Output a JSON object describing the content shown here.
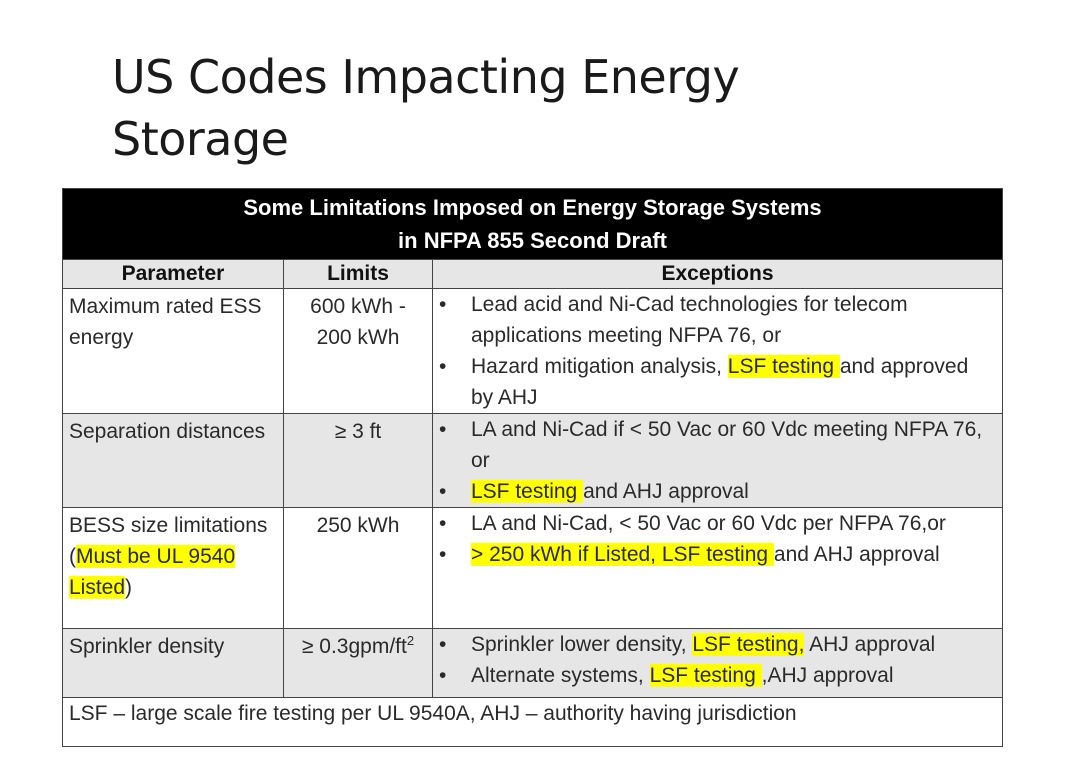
{
  "title": {
    "line1": "US Codes Impacting Energy",
    "line2": "Storage"
  },
  "table": {
    "caption_line1": "Some Limitations Imposed on Energy Storage Systems",
    "caption_line2": "in NFPA 855 Second Draft",
    "headers": {
      "parameter": "Parameter",
      "limits": "Limits",
      "exceptions": "Exceptions"
    },
    "bullet": "•",
    "rows": [
      {
        "parameter": "Maximum rated ESS energy",
        "limits": "600 kWh - 200 kWh",
        "exceptions": [
          {
            "text": " Lead acid and Ni-Cad technologies for telecom applications meeting NFPA 76, or"
          },
          {
            "pre": "Hazard mitigation analysis, ",
            "hl": "LSF testing ",
            "post": "and approved by AHJ"
          }
        ]
      },
      {
        "parameter": "Separation distances",
        "limits": "≥ 3 ft",
        "exceptions": [
          {
            "text": "LA and Ni-Cad if < 50 Vac or 60 Vdc meeting NFPA 76, or"
          },
          {
            "hl": "LSF testing ",
            "post": "and AHJ approval"
          }
        ]
      },
      {
        "parameter_pre": "BESS size limitations (",
        "parameter_hl": "Must be UL 9540 Listed",
        "parameter_post": ")",
        "limits": "250 kWh",
        "exceptions": [
          {
            "text": "LA and Ni-Cad, < 50 Vac or 60 Vdc per NFPA 76,or"
          },
          {
            "hl": "> 250 kWh if Listed, LSF testing ",
            "post": "and AHJ approval"
          }
        ]
      },
      {
        "parameter": "Sprinkler density",
        "limits_main": "≥ 0.3gpm/ft",
        "limits_sup": "2",
        "exceptions": [
          {
            "pre": "Sprinkler lower density, ",
            "hl": "LSF testing,",
            "post": " AHJ approval"
          },
          {
            "pre": "Alternate systems, ",
            "hl": "LSF testing ",
            "post": ",AHJ approval"
          }
        ]
      }
    ],
    "footnote": "LSF – large scale fire testing per UL 9540A, AHJ – authority having jurisdiction"
  },
  "colors": {
    "highlight": "#ffff00",
    "caption_bg": "#000000",
    "shaded_row": "#e6e6e6"
  }
}
